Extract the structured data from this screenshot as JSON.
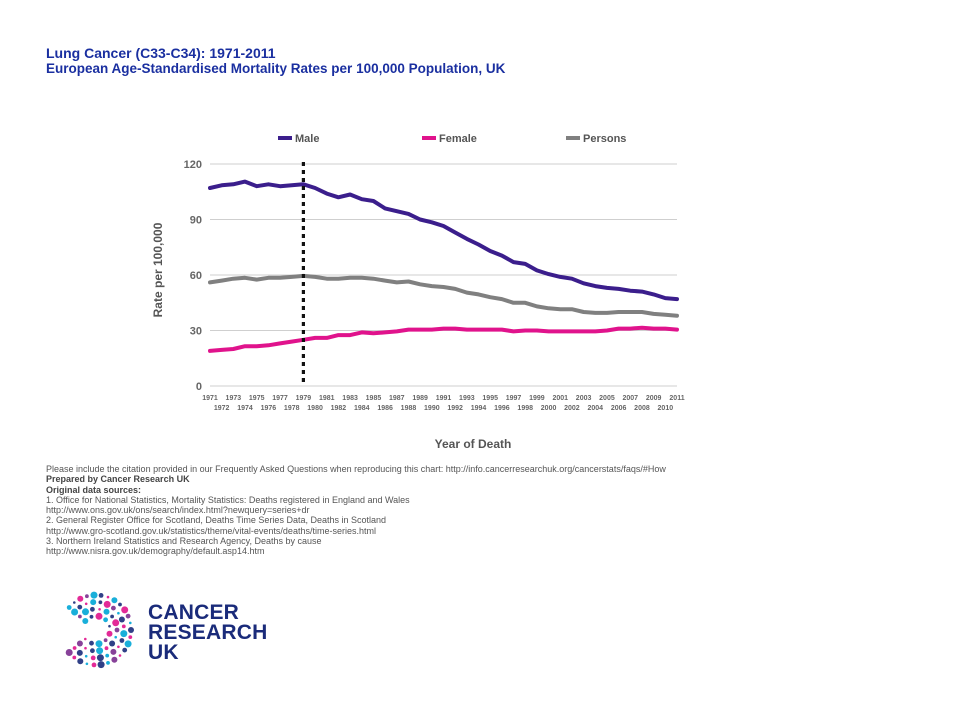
{
  "header": {
    "title": "Lung Cancer (C33-C34): 1971-2011",
    "subtitle": "European Age-Standardised Mortality Rates per 100,000 Population, UK"
  },
  "chart_data": {
    "type": "line",
    "title": "Lung Cancer (C33-C34): 1971-2011",
    "subtitle": "European Age-Standardised Mortality Rates per 100,000 Population, UK",
    "xlabel": "Year of Death",
    "ylabel": "Rate per 100,000",
    "ylim": [
      0,
      120
    ],
    "yticks": [
      0,
      30,
      60,
      90,
      120
    ],
    "grid": true,
    "legend_position": "top",
    "marker_year": 1979,
    "x": [
      1971,
      1972,
      1973,
      1974,
      1975,
      1976,
      1977,
      1978,
      1979,
      1980,
      1981,
      1982,
      1983,
      1984,
      1985,
      1986,
      1987,
      1988,
      1989,
      1990,
      1991,
      1992,
      1993,
      1994,
      1995,
      1996,
      1997,
      1998,
      1999,
      2000,
      2001,
      2002,
      2003,
      2004,
      2005,
      2006,
      2007,
      2008,
      2009,
      2010,
      2011
    ],
    "xtick_labels": [
      "1971",
      "1972",
      "1973",
      "1974",
      "1975",
      "1976",
      "1977",
      "1978",
      "1979",
      "1980",
      "1981",
      "1982",
      "1983",
      "1984",
      "1985",
      "1986",
      "1987",
      "1988",
      "1989",
      "1990",
      "1991",
      "1992",
      "1993",
      "1994",
      "1995",
      "1996",
      "1997",
      "1998",
      "1999",
      "2000",
      "2001",
      "2002",
      "2003",
      "2004",
      "2005",
      "2006",
      "2007",
      "2008",
      "2009",
      "2010",
      "2011"
    ],
    "series": [
      {
        "name": "Male",
        "color": "#3b1e8c",
        "values": [
          107,
          108.5,
          109,
          110.5,
          108,
          109,
          108,
          108.5,
          109,
          107,
          104,
          102,
          103.5,
          101,
          100,
          96,
          94.5,
          93,
          90,
          88.5,
          86.5,
          83,
          79.5,
          76.5,
          73,
          70.5,
          67,
          66,
          62.5,
          60.5,
          59,
          58,
          55.5,
          54,
          53,
          52.5,
          51.5,
          51,
          49.5,
          47.5,
          47
        ]
      },
      {
        "name": "Female",
        "color": "#e0138c",
        "values": [
          19,
          19.5,
          20,
          21.5,
          21.5,
          22,
          23,
          24,
          25,
          26,
          26,
          27.5,
          27.5,
          29,
          28.5,
          29,
          29.5,
          30.5,
          30.5,
          30.5,
          31,
          31,
          30.5,
          30.5,
          30.5,
          30.5,
          29.5,
          30,
          30,
          29.5,
          29.5,
          29.5,
          29.5,
          29.5,
          30,
          31,
          31,
          31.5,
          31,
          31,
          30.5
        ]
      },
      {
        "name": "Persons",
        "color": "#808080",
        "values": [
          56,
          57,
          58,
          58.5,
          57.5,
          58.5,
          58.5,
          59,
          59.5,
          59,
          58,
          58,
          58.5,
          58.5,
          58,
          57,
          56,
          56.5,
          55,
          54,
          53.5,
          52.5,
          50.5,
          49.5,
          48,
          47,
          45,
          45,
          43,
          42,
          41.5,
          41.5,
          40,
          39.5,
          39.5,
          40,
          40,
          40,
          39,
          38.5,
          38
        ]
      }
    ]
  },
  "notes": {
    "citation": "Please include the citation provided in our Frequently Asked Questions when reproducing this chart: http://info.cancerresearchuk.org/cancerstats/faqs/#How",
    "prepared_by": "Prepared by Cancer Research UK",
    "sources_heading": "Original data sources:",
    "source_1": "1. Office for National Statistics, Mortality Statistics: Deaths registered in England and Wales",
    "source_1_url": "http://www.ons.gov.uk/ons/search/index.html?newquery=series+dr",
    "source_2": "2. General Register Office for Scotland, Deaths Time Series Data, Deaths in Scotland",
    "source_2_url": "http://www.gro-scotland.gov.uk/statistics/theme/vital-events/deaths/time-series.html",
    "source_3": "3. Northern Ireland Statistics and Research Agency, Deaths by cause",
    "source_3_url": "http://www.nisra.gov.uk/demography/default.asp14.htm"
  },
  "logo": {
    "line1": "CANCER",
    "line2": "RESEARCH",
    "line3": "UK"
  }
}
